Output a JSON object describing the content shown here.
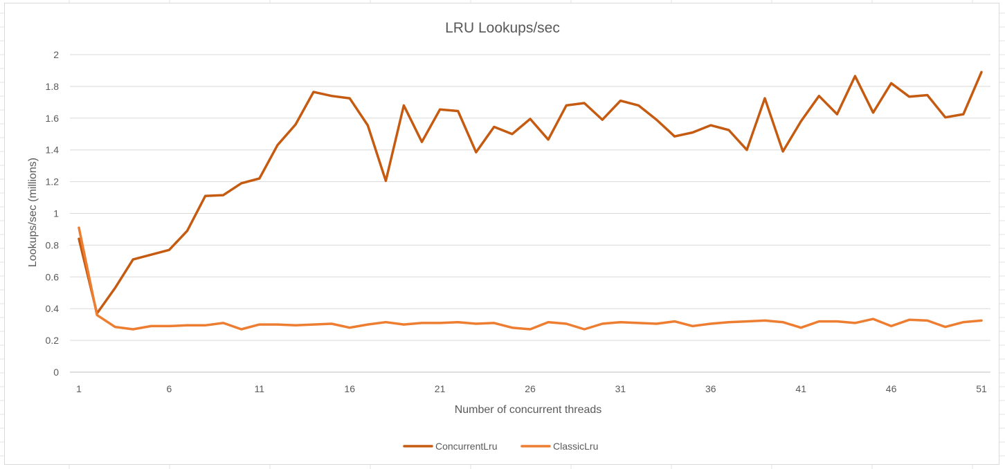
{
  "chart_data": {
    "type": "line",
    "title": "LRU Lookups/sec",
    "xlabel": "Number of concurrent threads",
    "ylabel": "Lookups/sec (millions)",
    "ylim": [
      0,
      2
    ],
    "yticks": [
      "0",
      "0.2",
      "0.4",
      "0.6",
      "0.8",
      "1",
      "1.2",
      "1.4",
      "1.6",
      "1.8",
      "2"
    ],
    "xticks": [
      "1",
      "6",
      "11",
      "16",
      "21",
      "26",
      "31",
      "36",
      "41",
      "46",
      "51"
    ],
    "grid": true,
    "legend_position": "bottom",
    "x": [
      1,
      2,
      3,
      4,
      5,
      6,
      7,
      8,
      9,
      10,
      11,
      12,
      13,
      14,
      15,
      16,
      17,
      18,
      19,
      20,
      21,
      22,
      23,
      24,
      25,
      26,
      27,
      28,
      29,
      30,
      31,
      32,
      33,
      34,
      35,
      36,
      37,
      38,
      39,
      40,
      41,
      42,
      43,
      44,
      45,
      46,
      47,
      48,
      49,
      50,
      51
    ],
    "series": [
      {
        "name": "ConcurrentLru",
        "color": "#c55a11",
        "values": [
          0.84,
          0.37,
          0.53,
          0.71,
          0.74,
          0.77,
          0.89,
          1.11,
          1.115,
          1.19,
          1.22,
          1.43,
          1.56,
          1.765,
          1.74,
          1.725,
          1.555,
          1.205,
          1.68,
          1.45,
          1.655,
          1.645,
          1.385,
          1.545,
          1.5,
          1.595,
          1.465,
          1.68,
          1.695,
          1.59,
          1.71,
          1.68,
          1.59,
          1.485,
          1.51,
          1.555,
          1.525,
          1.4,
          1.725,
          1.39,
          1.58,
          1.74,
          1.625,
          1.865,
          1.635,
          1.82,
          1.735,
          1.745,
          1.605,
          1.625,
          1.89
        ]
      },
      {
        "name": "ClassicLru",
        "color": "#ed7d31",
        "values": [
          0.91,
          0.36,
          0.285,
          0.27,
          0.29,
          0.29,
          0.295,
          0.295,
          0.31,
          0.27,
          0.3,
          0.3,
          0.295,
          0.3,
          0.305,
          0.28,
          0.3,
          0.315,
          0.3,
          0.31,
          0.31,
          0.315,
          0.305,
          0.31,
          0.28,
          0.27,
          0.315,
          0.305,
          0.27,
          0.305,
          0.315,
          0.31,
          0.305,
          0.32,
          0.29,
          0.305,
          0.315,
          0.32,
          0.325,
          0.315,
          0.28,
          0.32,
          0.32,
          0.31,
          0.335,
          0.29,
          0.33,
          0.325,
          0.285,
          0.315,
          0.325
        ]
      }
    ]
  }
}
